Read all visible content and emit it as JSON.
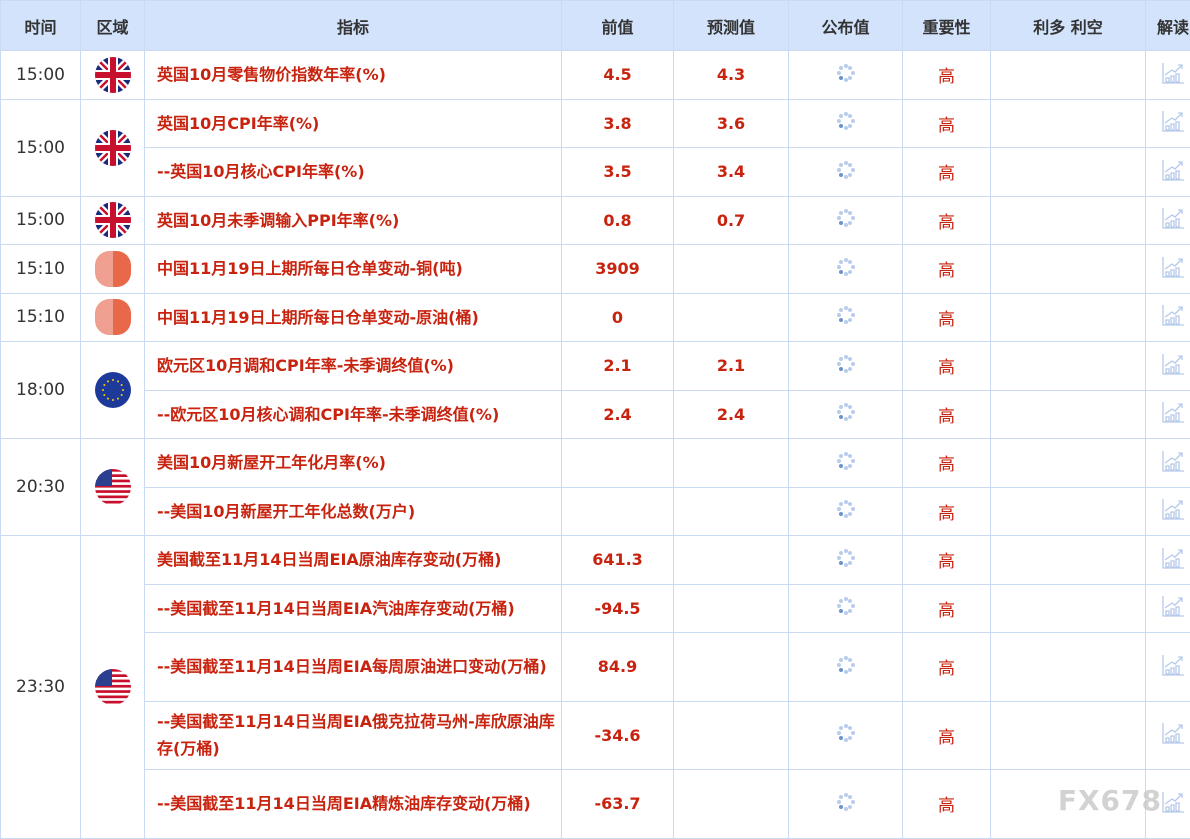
{
  "headers": [
    "时间",
    "区域",
    "指标",
    "前值",
    "预测值",
    "公布值",
    "重要性",
    "利多 利空",
    "解读"
  ],
  "groups": [
    {
      "time": "15:00",
      "flag": "uk-flag",
      "rows": [
        {
          "ind": "英国10月零售物价指数年率(%)",
          "prev": "4.5",
          "fc": "4.3",
          "imp": "高",
          "tall": false
        }
      ]
    },
    {
      "time": "15:00",
      "flag": "uk-flag",
      "rows": [
        {
          "ind": "英国10月CPI年率(%)",
          "prev": "3.8",
          "fc": "3.6",
          "imp": "高",
          "tall": false
        },
        {
          "ind": "--英国10月核心CPI年率(%)",
          "prev": "3.5",
          "fc": "3.4",
          "imp": "高",
          "tall": false
        }
      ]
    },
    {
      "time": "15:00",
      "flag": "uk-flag",
      "rows": [
        {
          "ind": "英国10月未季调输入PPI年率(%)",
          "prev": "0.8",
          "fc": "0.7",
          "imp": "高",
          "tall": false
        }
      ]
    },
    {
      "time": "15:10",
      "flag": "cn-flag",
      "rows": [
        {
          "ind": "中国11月19日上期所每日仓单变动-铜(吨)",
          "prev": "3909",
          "fc": "",
          "imp": "高",
          "tall": false
        }
      ]
    },
    {
      "time": "15:10",
      "flag": "cn-flag",
      "rows": [
        {
          "ind": "中国11月19日上期所每日仓单变动-原油(桶)",
          "prev": "0",
          "fc": "",
          "imp": "高",
          "tall": false
        }
      ]
    },
    {
      "time": "18:00",
      "flag": "eu-flag",
      "rows": [
        {
          "ind": "欧元区10月调和CPI年率-未季调终值(%)",
          "prev": "2.1",
          "fc": "2.1",
          "imp": "高",
          "tall": false
        },
        {
          "ind": "--欧元区10月核心调和CPI年率-未季调终值(%)",
          "prev": "2.4",
          "fc": "2.4",
          "imp": "高",
          "tall": false
        }
      ]
    },
    {
      "time": "20:30",
      "flag": "us-flag",
      "rows": [
        {
          "ind": "美国10月新屋开工年化月率(%)",
          "prev": "",
          "fc": "",
          "imp": "高",
          "tall": false
        },
        {
          "ind": "--美国10月新屋开工年化总数(万户)",
          "prev": "",
          "fc": "",
          "imp": "高",
          "tall": false
        }
      ]
    },
    {
      "time": "23:30",
      "flag": "us-flag",
      "rows": [
        {
          "ind": "美国截至11月14日当周EIA原油库存变动(万桶)",
          "prev": "641.3",
          "fc": "",
          "imp": "高",
          "tall": false
        },
        {
          "ind": "--美国截至11月14日当周EIA汽油库存变动(万桶)",
          "prev": "-94.5",
          "fc": "",
          "imp": "高",
          "tall": false
        },
        {
          "ind": "--美国截至11月14日当周EIA每周原油进口变动(万桶)",
          "prev": "84.9",
          "fc": "",
          "imp": "高",
          "tall": true
        },
        {
          "ind": "--美国截至11月14日当周EIA俄克拉荷马州-库欣原油库存(万桶)",
          "prev": "-34.6",
          "fc": "",
          "imp": "高",
          "tall": true
        },
        {
          "ind": "--美国截至11月14日当周EIA精炼油库存变动(万桶)",
          "prev": "-63.7",
          "fc": "",
          "imp": "高",
          "tall": true
        }
      ]
    }
  ],
  "watermark": "FX678",
  "colors": {
    "header_bg": "#d2e3fb",
    "accent_red": "#c8230f",
    "border": "#c9daf3"
  }
}
